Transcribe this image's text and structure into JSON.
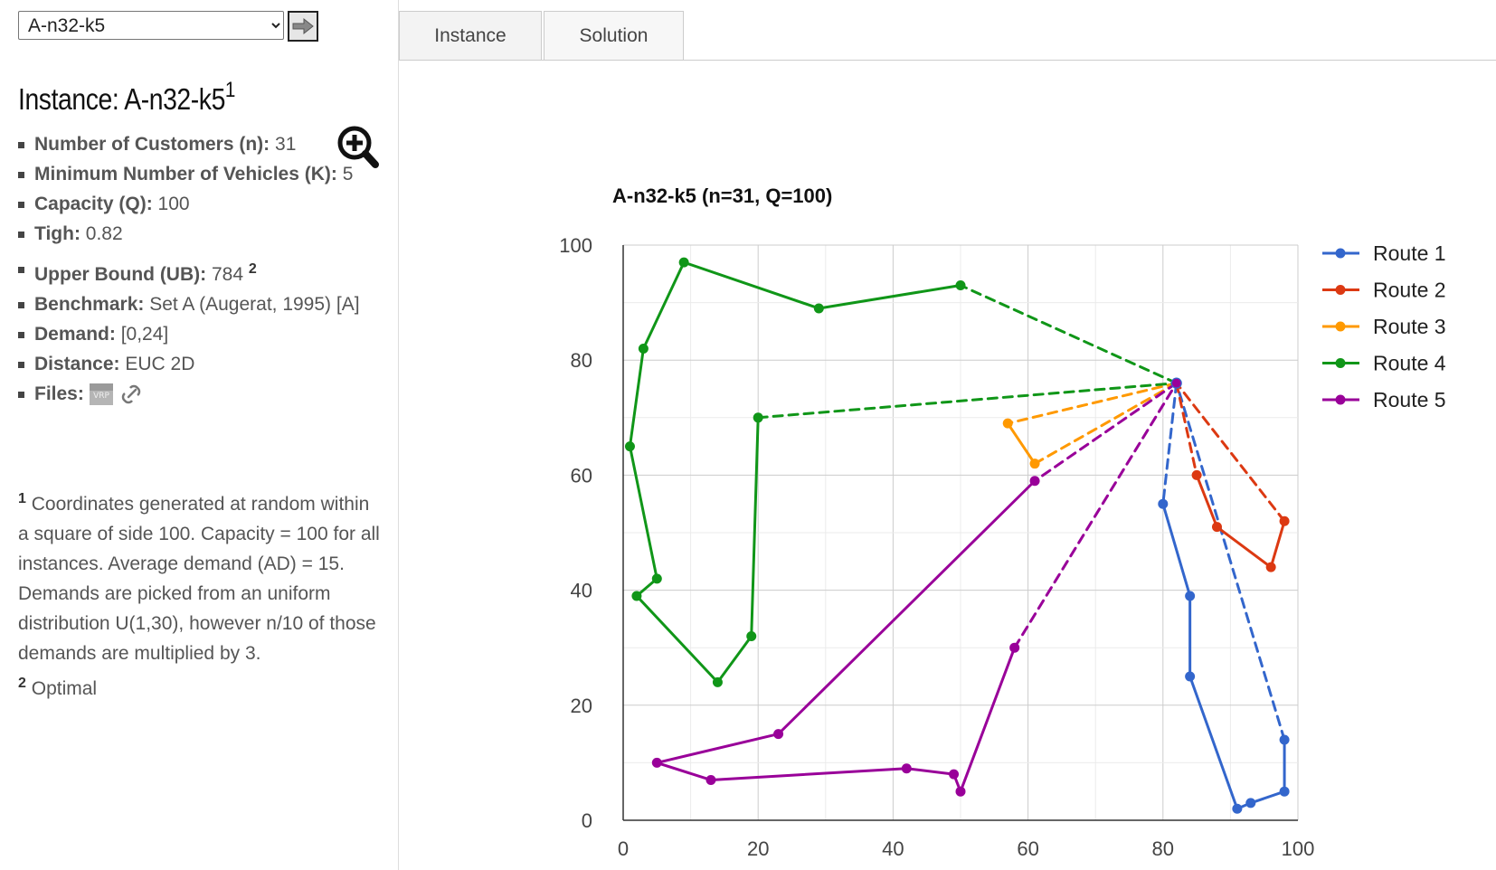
{
  "selector": {
    "value": "A-n32-k5"
  },
  "instance": {
    "title_prefix": "Instance:",
    "title_name": "A-n32-k5",
    "title_note": "1",
    "props": [
      {
        "key": "Number of Customers (n):",
        "value": "31"
      },
      {
        "key": "Minimum Number of Vehicles (K):",
        "value": "5"
      },
      {
        "key": "Capacity (Q):",
        "value": "100"
      },
      {
        "key": "Tigh:",
        "value": "0.82"
      },
      {
        "key": "Upper Bound (UB):",
        "value": "784",
        "note": "2"
      },
      {
        "key": "Benchmark:",
        "value": "Set A (Augerat, 1995) [A]"
      },
      {
        "key": "Demand:",
        "value": "[0,24]"
      },
      {
        "key": "Distance:",
        "value": "EUC 2D"
      },
      {
        "key": "Files:",
        "value": ""
      }
    ],
    "notes": [
      {
        "mark": "1",
        "text": "Coordinates generated at random within a square of side 100. Capacity = 100 for all instances. Average demand (AD) = 15. Demands are picked from an uniform distribution U(1,30), however n/10 of those demands are multiplied by 3."
      },
      {
        "mark": "2",
        "text": "Optimal"
      }
    ],
    "file_icons": [
      "vrp-file-icon",
      "link-icon"
    ]
  },
  "tabs": [
    {
      "label": "Instance"
    },
    {
      "label": "Solution"
    }
  ],
  "icons": {
    "go": "arrow-right-icon",
    "zoom": "zoom-in-icon"
  },
  "chart_data": {
    "type": "line",
    "title": "A-n32-k5 (n=31, Q=100)",
    "xlim": [
      0,
      100
    ],
    "ylim": [
      0,
      100
    ],
    "xticks": [
      0,
      20,
      40,
      60,
      80,
      100
    ],
    "yticks": [
      0,
      20,
      40,
      60,
      80,
      100
    ],
    "grid": true,
    "legend_position": "right",
    "depot": [
      82,
      76
    ],
    "series": [
      {
        "name": "Route 1",
        "color": "#3366cc",
        "points": [
          [
            82,
            76
          ],
          [
            80,
            55
          ],
          [
            84,
            39
          ],
          [
            84,
            25
          ],
          [
            91,
            2
          ],
          [
            93,
            3
          ],
          [
            98,
            5
          ],
          [
            98,
            14
          ],
          [
            82,
            76
          ]
        ]
      },
      {
        "name": "Route 2",
        "color": "#dc3912",
        "points": [
          [
            82,
            76
          ],
          [
            85,
            60
          ],
          [
            88,
            51
          ],
          [
            96,
            44
          ],
          [
            98,
            52
          ],
          [
            82,
            76
          ]
        ]
      },
      {
        "name": "Route 3",
        "color": "#ff9900",
        "points": [
          [
            82,
            76
          ],
          [
            57,
            69
          ],
          [
            61,
            62
          ],
          [
            82,
            76
          ]
        ]
      },
      {
        "name": "Route 4",
        "color": "#109618",
        "points": [
          [
            82,
            76
          ],
          [
            50,
            93
          ],
          [
            29,
            89
          ],
          [
            9,
            97
          ],
          [
            3,
            82
          ],
          [
            1,
            65
          ],
          [
            5,
            42
          ],
          [
            2,
            39
          ],
          [
            14,
            24
          ],
          [
            19,
            32
          ],
          [
            20,
            70
          ],
          [
            82,
            76
          ]
        ]
      },
      {
        "name": "Route 5",
        "color": "#990099",
        "points": [
          [
            82,
            76
          ],
          [
            61,
            59
          ],
          [
            23,
            15
          ],
          [
            5,
            10
          ],
          [
            13,
            7
          ],
          [
            42,
            9
          ],
          [
            49,
            8
          ],
          [
            50,
            5
          ],
          [
            58,
            30
          ],
          [
            82,
            76
          ]
        ]
      }
    ]
  }
}
